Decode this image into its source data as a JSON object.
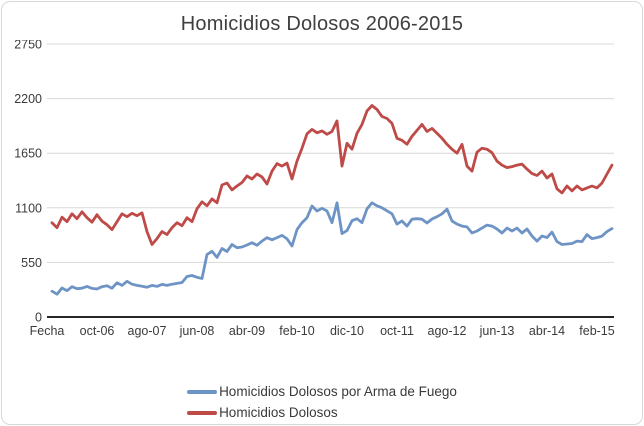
{
  "chart_data": {
    "type": "line",
    "title": "Homicidios Dolosos 2006-2015",
    "xlabel": "",
    "ylabel": "",
    "ylim": [
      0,
      2750
    ],
    "y_ticks": [
      0,
      550,
      1100,
      1650,
      2200,
      2750
    ],
    "x_tick_labels": [
      "Fecha",
      "oct-06",
      "ago-07",
      "jun-08",
      "abr-09",
      "feb-10",
      "dic-10",
      "oct-11",
      "ago-12",
      "jun-13",
      "abr-14",
      "feb-15"
    ],
    "x_points_per_tick": 10,
    "x_note": "monthly points ene-06 through may-15; first slot is the 'Fecha' header category with no value",
    "grid": "horizontal",
    "legend_position": "bottom",
    "series": [
      {
        "name": "Homicidios Dolosos por Arma de Fuego",
        "color": "#6E94C6",
        "values": [
          null,
          260,
          230,
          292,
          265,
          305,
          285,
          290,
          308,
          288,
          282,
          305,
          315,
          290,
          345,
          318,
          360,
          330,
          318,
          310,
          300,
          318,
          308,
          328,
          318,
          330,
          338,
          348,
          408,
          418,
          400,
          388,
          630,
          662,
          600,
          690,
          660,
          730,
          698,
          705,
          725,
          748,
          722,
          765,
          800,
          778,
          800,
          822,
          788,
          715,
          880,
          950,
          1000,
          1118,
          1068,
          1095,
          1068,
          950,
          1150,
          840,
          870,
          970,
          990,
          950,
          1090,
          1150,
          1120,
          1100,
          1070,
          1040,
          936,
          967,
          916,
          985,
          990,
          985,
          947,
          987,
          1010,
          1040,
          1087,
          967,
          936,
          916,
          908,
          846,
          866,
          896,
          926,
          916,
          886,
          846,
          896,
          866,
          896,
          846,
          886,
          816,
          765,
          816,
          800,
          855,
          760,
          730,
          735,
          740,
          765,
          760,
          830,
          790,
          800,
          815,
          860,
          890
        ]
      },
      {
        "name": "Homicidios Dolosos",
        "color": "#BE4B48",
        "values": [
          null,
          950,
          900,
          1005,
          960,
          1040,
          990,
          1060,
          1000,
          955,
          1030,
          965,
          930,
          880,
          960,
          1040,
          1010,
          1045,
          1020,
          1050,
          860,
          730,
          790,
          860,
          830,
          900,
          950,
          920,
          1000,
          960,
          1090,
          1160,
          1120,
          1190,
          1150,
          1330,
          1350,
          1280,
          1320,
          1355,
          1420,
          1390,
          1440,
          1410,
          1340,
          1470,
          1545,
          1520,
          1550,
          1390,
          1570,
          1700,
          1845,
          1890,
          1855,
          1875,
          1840,
          1870,
          1975,
          1520,
          1750,
          1690,
          1850,
          1940,
          2075,
          2130,
          2090,
          2020,
          2000,
          1950,
          1800,
          1780,
          1740,
          1820,
          1880,
          1940,
          1870,
          1900,
          1850,
          1800,
          1740,
          1690,
          1650,
          1740,
          1520,
          1470,
          1660,
          1700,
          1690,
          1655,
          1570,
          1530,
          1505,
          1515,
          1530,
          1540,
          1490,
          1445,
          1425,
          1470,
          1400,
          1440,
          1290,
          1250,
          1320,
          1270,
          1320,
          1280,
          1300,
          1320,
          1300,
          1350,
          1440,
          1530
        ]
      }
    ]
  },
  "colors": {
    "grid": "#d8d8d8",
    "zero_axis": "#262626",
    "text": "#3b3b3b",
    "frame_border": "#d8d8d8",
    "background": "#ffffff"
  }
}
